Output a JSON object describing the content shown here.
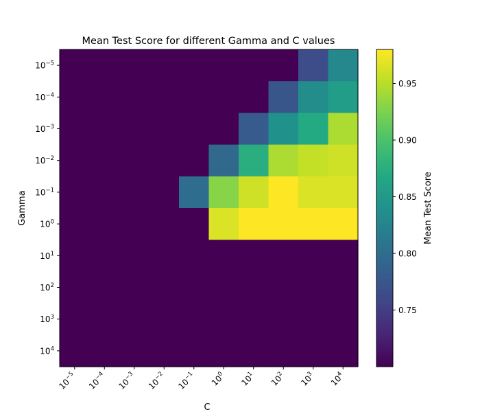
{
  "chart_data": {
    "type": "heatmap",
    "title": "Mean Test Score for different Gamma and C values",
    "xlabel": "C",
    "ylabel": "Gamma",
    "colorbar_label": "Mean Test Score",
    "colormap": "viridis",
    "x_categories": [
      {
        "base": "10",
        "exp": "−5"
      },
      {
        "base": "10",
        "exp": "−4"
      },
      {
        "base": "10",
        "exp": "−3"
      },
      {
        "base": "10",
        "exp": "−2"
      },
      {
        "base": "10",
        "exp": "−1"
      },
      {
        "base": "10",
        "exp": "0"
      },
      {
        "base": "10",
        "exp": "1"
      },
      {
        "base": "10",
        "exp": "2"
      },
      {
        "base": "10",
        "exp": "3"
      },
      {
        "base": "10",
        "exp": "4"
      }
    ],
    "y_categories": [
      {
        "base": "10",
        "exp": "−5"
      },
      {
        "base": "10",
        "exp": "−4"
      },
      {
        "base": "10",
        "exp": "−3"
      },
      {
        "base": "10",
        "exp": "−2"
      },
      {
        "base": "10",
        "exp": "−1"
      },
      {
        "base": "10",
        "exp": "0"
      },
      {
        "base": "10",
        "exp": "1"
      },
      {
        "base": "10",
        "exp": "2"
      },
      {
        "base": "10",
        "exp": "3"
      },
      {
        "base": "10",
        "exp": "4"
      }
    ],
    "values": [
      [
        0.7,
        0.7,
        0.7,
        0.7,
        0.7,
        0.7,
        0.7,
        0.7,
        0.765,
        0.83
      ],
      [
        0.7,
        0.7,
        0.7,
        0.7,
        0.7,
        0.7,
        0.7,
        0.775,
        0.835,
        0.855
      ],
      [
        0.7,
        0.7,
        0.7,
        0.7,
        0.7,
        0.7,
        0.78,
        0.84,
        0.87,
        0.945
      ],
      [
        0.7,
        0.7,
        0.7,
        0.7,
        0.7,
        0.795,
        0.875,
        0.945,
        0.955,
        0.96
      ],
      [
        0.7,
        0.7,
        0.7,
        0.7,
        0.8,
        0.93,
        0.96,
        0.98,
        0.965,
        0.965
      ],
      [
        0.7,
        0.7,
        0.7,
        0.7,
        0.7,
        0.965,
        0.98,
        0.98,
        0.98,
        0.98
      ],
      [
        0.7,
        0.7,
        0.7,
        0.7,
        0.7,
        0.7,
        0.7,
        0.7,
        0.7,
        0.7
      ],
      [
        0.7,
        0.7,
        0.7,
        0.7,
        0.7,
        0.7,
        0.7,
        0.7,
        0.7,
        0.7
      ],
      [
        0.7,
        0.7,
        0.7,
        0.7,
        0.7,
        0.7,
        0.7,
        0.7,
        0.7,
        0.7
      ],
      [
        0.7,
        0.7,
        0.7,
        0.7,
        0.7,
        0.7,
        0.7,
        0.7,
        0.7,
        0.7
      ]
    ],
    "colorbar_range": [
      0.7,
      0.98
    ],
    "colorbar_ticks": [
      "0.75",
      "0.80",
      "0.85",
      "0.90",
      "0.95"
    ],
    "grid": false
  }
}
